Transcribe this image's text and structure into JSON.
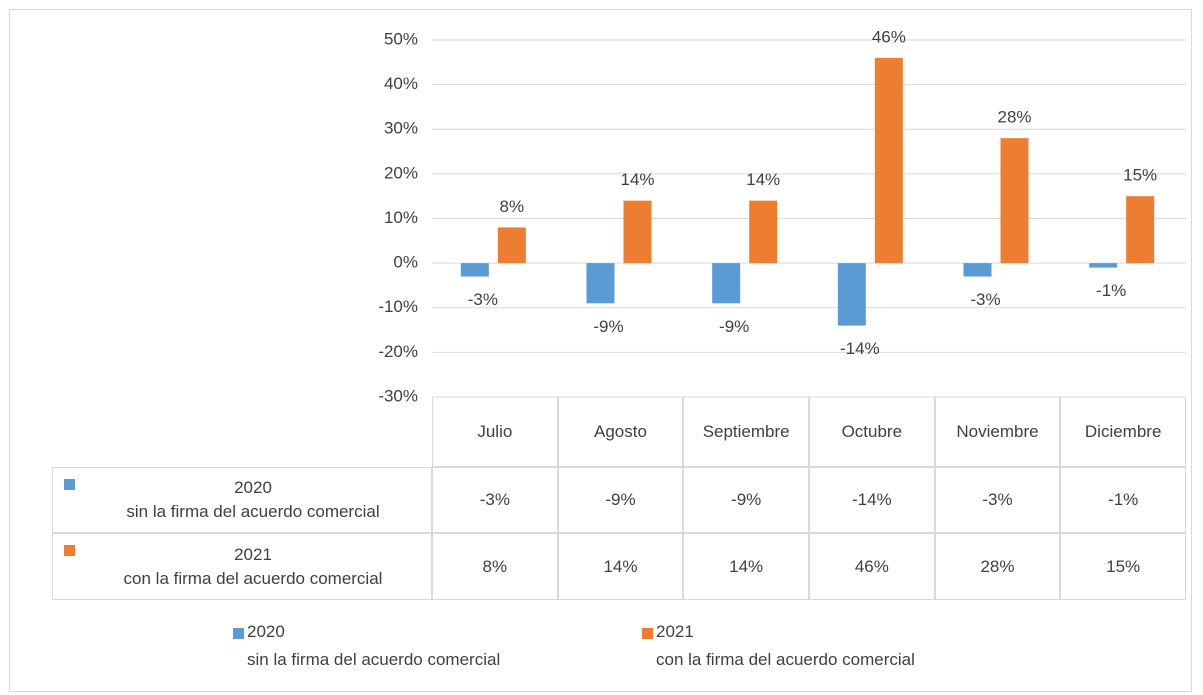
{
  "chart_data": {
    "type": "bar",
    "categories": [
      "Julio",
      "Agosto",
      "Septiembre",
      "Octubre",
      "Noviembre",
      "Diciembre"
    ],
    "series": [
      {
        "name": "2020\nsin la firma del acuerdo comercial",
        "color": "#5b9bd5",
        "values": [
          -3,
          -9,
          -9,
          -14,
          -3,
          -1
        ],
        "value_labels": [
          "-3%",
          "-9%",
          "-9%",
          "-14%",
          "-3%",
          "-1%"
        ]
      },
      {
        "name": "2021\ncon la firma del acuerdo comercial",
        "color": "#ed7d31",
        "values": [
          8,
          14,
          14,
          46,
          28,
          15
        ],
        "value_labels": [
          "8%",
          "14%",
          "14%",
          "46%",
          "28%",
          "15%"
        ]
      }
    ],
    "ylim": [
      -30,
      50
    ],
    "yticks": [
      {
        "value": -30,
        "label": "-30%"
      },
      {
        "value": -20,
        "label": "-20%"
      },
      {
        "value": -10,
        "label": "-10%"
      },
      {
        "value": 0,
        "label": "0%"
      },
      {
        "value": 10,
        "label": "10%"
      },
      {
        "value": 20,
        "label": "20%"
      },
      {
        "value": 30,
        "label": "30%"
      },
      {
        "value": 40,
        "label": "40%"
      },
      {
        "value": 50,
        "label": "50%"
      }
    ],
    "grid": true
  }
}
